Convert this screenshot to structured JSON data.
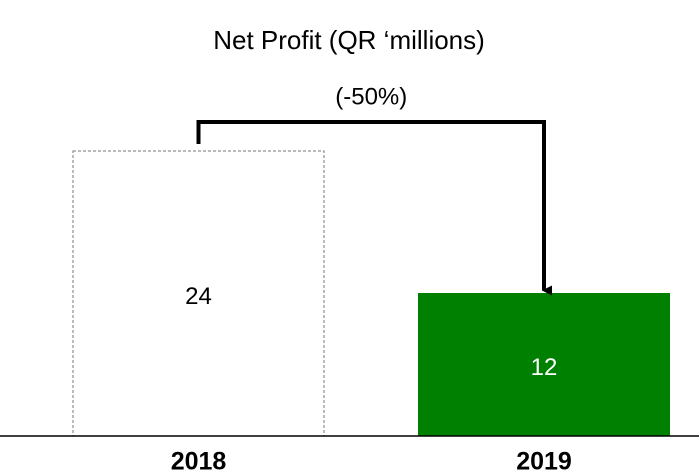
{
  "chart_data": {
    "type": "bar",
    "title": "Net Profit (QR ‘millions)",
    "categories": [
      "2018",
      "2019"
    ],
    "values": [
      24,
      12
    ],
    "colors": [
      "#ffffff",
      "#008000"
    ],
    "annotation": "(-50%)"
  }
}
